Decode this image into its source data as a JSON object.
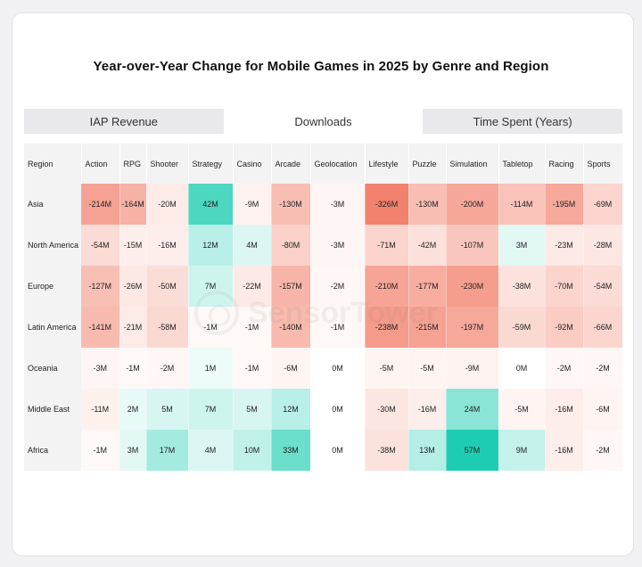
{
  "title": "Year-over-Year Change for Mobile Games in 2025 by Genre and Region",
  "tabs": [
    {
      "label": "IAP Revenue",
      "active": false
    },
    {
      "label": "Downloads",
      "active": true
    },
    {
      "label": "Time Spent (Years)",
      "active": false
    }
  ],
  "watermark": "SensorTower",
  "colors": {
    "negative": "#f2826e",
    "positive": "#1ecdb1",
    "neutral": "#ffffff"
  },
  "chart_data": {
    "type": "heatmap",
    "title": "Year-over-Year Change for Mobile Games in 2025 by Genre and Region",
    "row_header": "Region",
    "columns": [
      "Action",
      "RPG",
      "Shooter",
      "Strategy",
      "Casino",
      "Arcade",
      "Geolocation",
      "Lifestyle",
      "Puzzle",
      "Simulation",
      "Tabletop",
      "Racing",
      "Sports"
    ],
    "rows": [
      {
        "region": "Asia",
        "values": [
          -214,
          -164,
          -20,
          42,
          -9,
          -130,
          -3,
          -326,
          -130,
          -200,
          -114,
          -195,
          -69
        ],
        "labels": [
          "-214M",
          "-164M",
          "-20M",
          "42M",
          "-9M",
          "-130M",
          "-3M",
          "-326M",
          "-130M",
          "-200M",
          "-114M",
          "-195M",
          "-69M"
        ]
      },
      {
        "region": "North America",
        "values": [
          -54,
          -15,
          -16,
          12,
          4,
          -80,
          -3,
          -71,
          -42,
          -107,
          3,
          -23,
          -28
        ],
        "labels": [
          "-54M",
          "-15M",
          "-16M",
          "12M",
          "4M",
          "-80M",
          "-3M",
          "-71M",
          "-42M",
          "-107M",
          "3M",
          "-23M",
          "-28M"
        ]
      },
      {
        "region": "Europe",
        "values": [
          -127,
          -26,
          -50,
          7,
          -22,
          -157,
          -2,
          -210,
          -177,
          -230,
          -38,
          -70,
          -54
        ],
        "labels": [
          "-127M",
          "-26M",
          "-50M",
          "7M",
          "-22M",
          "-157M",
          "-2M",
          "-210M",
          "-177M",
          "-230M",
          "-38M",
          "-70M",
          "-54M"
        ]
      },
      {
        "region": "Latin America",
        "values": [
          -141,
          -21,
          -58,
          -1,
          -1,
          -140,
          -1,
          -238,
          -215,
          -197,
          -59,
          -92,
          -66
        ],
        "labels": [
          "-141M",
          "-21M",
          "-58M",
          "-1M",
          "-1M",
          "-140M",
          "-1M",
          "-238M",
          "-215M",
          "-197M",
          "-59M",
          "-92M",
          "-66M"
        ]
      },
      {
        "region": "Oceania",
        "values": [
          -3,
          -1,
          -2,
          1,
          -1,
          -6,
          0,
          -5,
          -5,
          -9,
          0,
          -2,
          -2
        ],
        "labels": [
          "-3M",
          "-1M",
          "-2M",
          "1M",
          "-1M",
          "-6M",
          "0M",
          "-5M",
          "-5M",
          "-9M",
          "0M",
          "-2M",
          "-2M"
        ]
      },
      {
        "region": "Middle East",
        "values": [
          -11,
          2,
          5,
          7,
          5,
          12,
          0,
          -30,
          -16,
          24,
          -5,
          -16,
          -6
        ],
        "labels": [
          "-11M",
          "2M",
          "5M",
          "7M",
          "5M",
          "12M",
          "0M",
          "-30M",
          "-16M",
          "24M",
          "-5M",
          "-16M",
          "-6M"
        ]
      },
      {
        "region": "Africa",
        "values": [
          -1,
          3,
          17,
          4,
          10,
          33,
          0,
          -38,
          13,
          57,
          9,
          -16,
          -2
        ],
        "labels": [
          "-1M",
          "3M",
          "17M",
          "4M",
          "10M",
          "33M",
          "0M",
          "-38M",
          "13M",
          "57M",
          "9M",
          "-16M",
          "-2M"
        ]
      }
    ]
  }
}
